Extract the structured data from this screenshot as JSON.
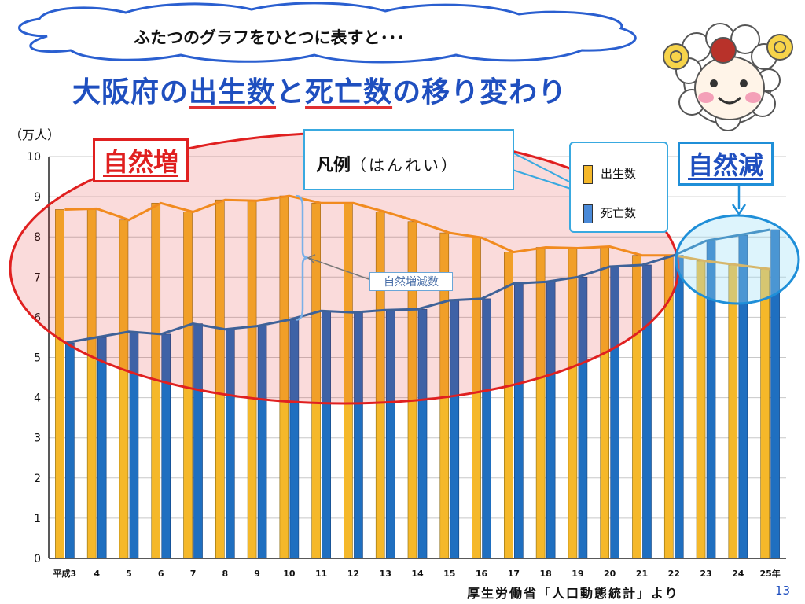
{
  "header": {
    "cloud_text": "ふたつのグラフをひとつに表すと･･･",
    "title_prefix": "大阪府の",
    "title_births": "出生数",
    "title_mid": "と",
    "title_deaths": "死亡数",
    "title_suffix": "の移り変わり"
  },
  "labels": {
    "unit": "（万人）",
    "natural_increase": "自然増",
    "natural_decrease": "自然減",
    "legend_callout_main": "凡例",
    "legend_callout_reading": "（はんれい）",
    "annotation": "自然増減数",
    "source": "厚生労働省「人口動態統計」より",
    "page_number": "13"
  },
  "colors": {
    "births_bar": "#f5b82a",
    "deaths_bar": "#1f6fc0",
    "births_line": "#f5a020",
    "deaths_line": "#1f6fb0",
    "increase_ellipse": "#e02020",
    "decrease_ellipse": "#1f8fd8"
  },
  "chart_data": {
    "type": "bar",
    "overlay": "line",
    "categories": [
      "平成3",
      "4",
      "5",
      "6",
      "7",
      "8",
      "9",
      "10",
      "11",
      "12",
      "13",
      "14",
      "15",
      "16",
      "17",
      "18",
      "19",
      "20",
      "21",
      "22",
      "23",
      "24",
      "25年"
    ],
    "series": [
      {
        "name": "出生数",
        "values": [
          8.68,
          8.7,
          8.42,
          8.84,
          8.62,
          8.92,
          8.9,
          9.02,
          8.84,
          8.84,
          8.62,
          8.38,
          8.1,
          7.98,
          7.62,
          7.74,
          7.72,
          7.76,
          7.54,
          7.54,
          7.4,
          7.3,
          7.2
        ]
      },
      {
        "name": "死亡数",
        "values": [
          5.36,
          5.5,
          5.64,
          5.58,
          5.84,
          5.7,
          5.78,
          5.94,
          6.16,
          6.12,
          6.18,
          6.2,
          6.42,
          6.46,
          6.84,
          6.88,
          7.0,
          7.26,
          7.3,
          7.54,
          7.9,
          8.04,
          8.18
        ]
      }
    ],
    "ylim": [
      0,
      10
    ],
    "yticks": [
      0,
      1,
      2,
      3,
      4,
      5,
      6,
      7,
      8,
      9,
      10
    ],
    "ylabel": "（万人）",
    "legend": "top-right",
    "grid": true
  }
}
